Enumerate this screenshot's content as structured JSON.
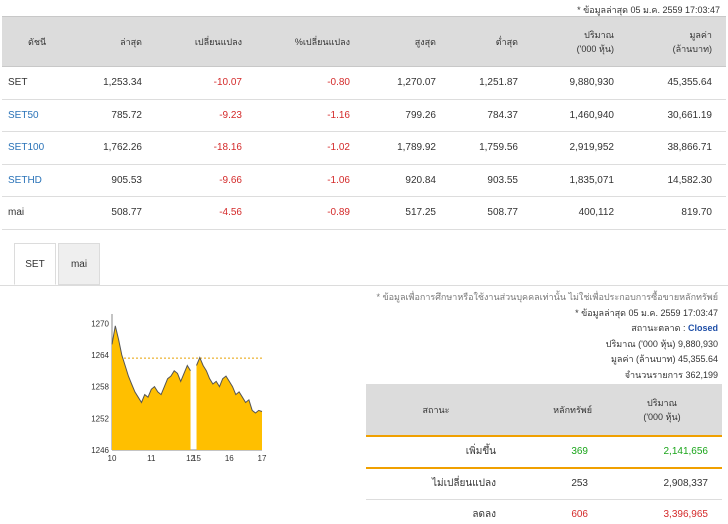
{
  "timestamp_top": "* ข้อมูลล่าสุด 05 ม.ค. 2559 17:03:47",
  "headers": {
    "index": "ดัชนี",
    "last": "ล่าสุด",
    "change": "เปลี่ยนแปลง",
    "pct_change": "%เปลี่ยนแปลง",
    "high": "สูงสุด",
    "low": "ต่ำสุด",
    "volume": "ปริมาณ",
    "volume_unit": "('000 หุ้น)",
    "value": "มูลค่า",
    "value_unit": "(ล้านบาท)"
  },
  "rows": [
    {
      "name": "SET",
      "last": "1,253.34",
      "change": "-10.07",
      "pct": "-0.80",
      "high": "1,270.07",
      "low": "1,251.87",
      "volume": "9,880,930",
      "value": "45,355.64"
    },
    {
      "name": "SET50",
      "last": "785.72",
      "change": "-9.23",
      "pct": "-1.16",
      "high": "799.26",
      "low": "784.37",
      "volume": "1,460,940",
      "value": "30,661.19"
    },
    {
      "name": "SET100",
      "last": "1,762.26",
      "change": "-18.16",
      "pct": "-1.02",
      "high": "1,789.92",
      "low": "1,759.56",
      "volume": "2,919,952",
      "value": "38,866.71"
    },
    {
      "name": "SETHD",
      "last": "905.53",
      "change": "-9.66",
      "pct": "-1.06",
      "high": "920.84",
      "low": "903.55",
      "volume": "1,835,071",
      "value": "14,582.30"
    },
    {
      "name": "mai",
      "last": "508.77",
      "change": "-4.56",
      "pct": "-0.89",
      "high": "517.25",
      "low": "508.77",
      "volume": "400,112",
      "value": "819.70"
    }
  ],
  "tabs": [
    "SET",
    "mai"
  ],
  "summary": {
    "note": "* ข้อมูลเพื่อการศึกษาหรือใช้งานส่วนบุคคลเท่านั้น ไม่ใช่เพื่อประกอบการซื้อขายหลักทรัพย์",
    "timestamp": "* ข้อมูลล่าสุด 05 ม.ค. 2559 17:03:47",
    "status_label": "สถานะตลาด :",
    "status_value": "Closed",
    "volume_label": "ปริมาณ ('000 หุ้น)",
    "volume_value": "9,880,930",
    "value_label": "มูลค่า (ล้านบาท)",
    "value_value": "45,355.64",
    "trades_label": "จำนวนรายการ",
    "trades_value": "362,199"
  },
  "breadth": {
    "headers": {
      "status": "สถานะ",
      "securities": "หลักทรัพย์",
      "volume": "ปริมาณ",
      "volume_unit": "('000 หุ้น)"
    },
    "rows": [
      {
        "label": "เพิ่มขึ้น",
        "count": "369",
        "volume": "2,141,656",
        "color": "#1aa51a"
      },
      {
        "label": "ไม่เปลี่ยนแปลง",
        "count": "253",
        "volume": "2,908,337",
        "color": "#333333"
      },
      {
        "label": "ลดลง",
        "count": "606",
        "volume": "3,396,965",
        "color": "#d42a2a"
      }
    ]
  },
  "colors": {
    "negative": "#d42a2a",
    "positive": "#1aa51a",
    "link": "#2a73b8",
    "chart_fill": "#ffbf00",
    "chart_line": "#555555",
    "closed": "#1f4fa8"
  },
  "chart_data": {
    "type": "area",
    "title": "",
    "xlabel": "",
    "ylabel": "",
    "x_ticks": [
      "10",
      "11",
      "12",
      "15",
      "16",
      "17"
    ],
    "y_ticks": [
      1270,
      1264,
      1258,
      1252,
      1246
    ],
    "ylim": [
      1246,
      1271
    ],
    "prev_close": 1263.41,
    "sessions": [
      {
        "values": [
          1266,
          1269.5,
          1267,
          1264,
          1262,
          1260,
          1258.5,
          1257,
          1256,
          1255,
          1256.5,
          1256,
          1257.5,
          1258,
          1257,
          1256.5,
          1258,
          1259.5,
          1260,
          1261,
          1260.5,
          1259,
          1260.5,
          1262,
          1261
        ]
      },
      {
        "values": [
          1262,
          1263.5,
          1262,
          1261,
          1259.5,
          1258.5,
          1259,
          1258,
          1259.5,
          1260,
          1259,
          1258,
          1256.5,
          1257,
          1256,
          1255,
          1255.5,
          1253.5,
          1253,
          1253.5,
          1253.3
        ]
      }
    ],
    "grid": false,
    "legend": "none"
  }
}
